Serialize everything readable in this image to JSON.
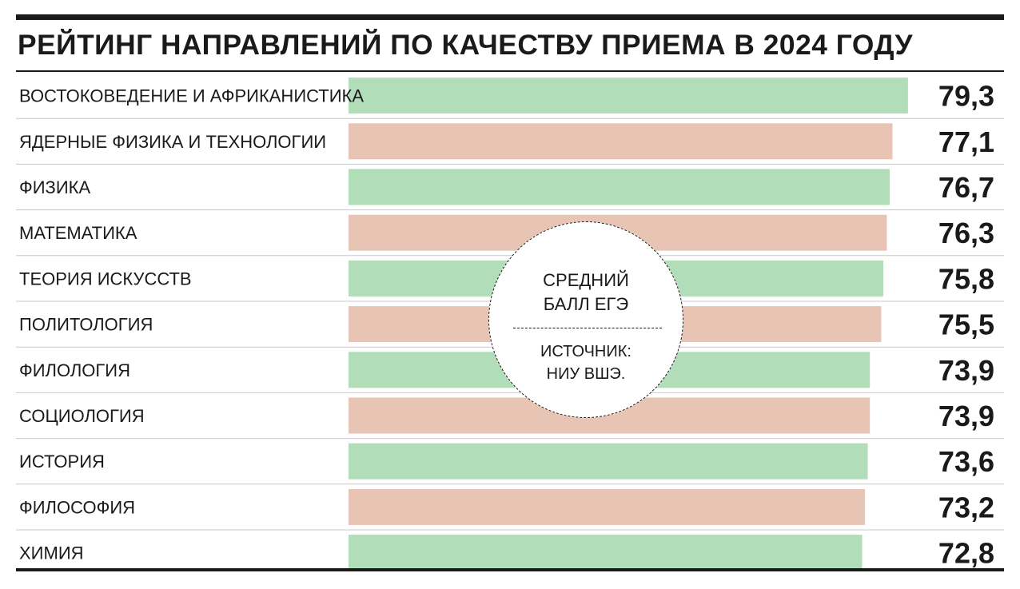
{
  "header": {
    "title": "РЕЙТИНГ НАПРАВЛЕНИЙ ПО КАЧЕСТВУ ПРИЕМА В 2024 ГОДУ"
  },
  "callout": {
    "metric_line1": "СРЕДНИЙ",
    "metric_line2": "БАЛЛ ЕГЭ",
    "source_line1": "ИСТОЧНИК:",
    "source_line2": "НИУ ВШЭ."
  },
  "colors": {
    "green": "#b2ddb9",
    "pink": "#e8c4b4",
    "separator": "#c8c8c8",
    "text": "#1a1a1a"
  },
  "chart_data": {
    "type": "bar",
    "orientation": "horizontal",
    "title": "РЕЙТИНГ НАПРАВЛЕНИЙ ПО КАЧЕСТВУ ПРИЕМА В 2024 ГОДУ",
    "xlabel": "",
    "ylabel": "",
    "categories": [
      "ВОСТОКОВЕДЕНИЕ И АФРИКАНИСТИКА",
      "ЯДЕРНЫЕ ФИЗИКА И ТЕХНОЛОГИИ",
      "ФИЗИКА",
      "МАТЕМАТИКА",
      "ТЕОРИЯ ИСКУССТВ",
      "ПОЛИТОЛОГИЯ",
      "ФИЛОЛОГИЯ",
      "СОЦИОЛОГИЯ",
      "ИСТОРИЯ",
      "ФИЛОСОФИЯ",
      "ХИМИЯ"
    ],
    "values": [
      79.3,
      77.1,
      76.7,
      76.3,
      75.8,
      75.5,
      73.9,
      73.9,
      73.6,
      73.2,
      72.8
    ],
    "value_labels": [
      "79,3",
      "77,1",
      "76,7",
      "76,3",
      "75,8",
      "75,5",
      "73,9",
      "73,9",
      "73,6",
      "73,2",
      "72,8"
    ],
    "bar_colors": [
      "#b2ddb9",
      "#e8c4b4",
      "#b2ddb9",
      "#e8c4b4",
      "#b2ddb9",
      "#e8c4b4",
      "#b2ddb9",
      "#e8c4b4",
      "#b2ddb9",
      "#e8c4b4",
      "#b2ddb9"
    ],
    "xlim": [
      0,
      80
    ],
    "grid": false,
    "legend": "none"
  }
}
